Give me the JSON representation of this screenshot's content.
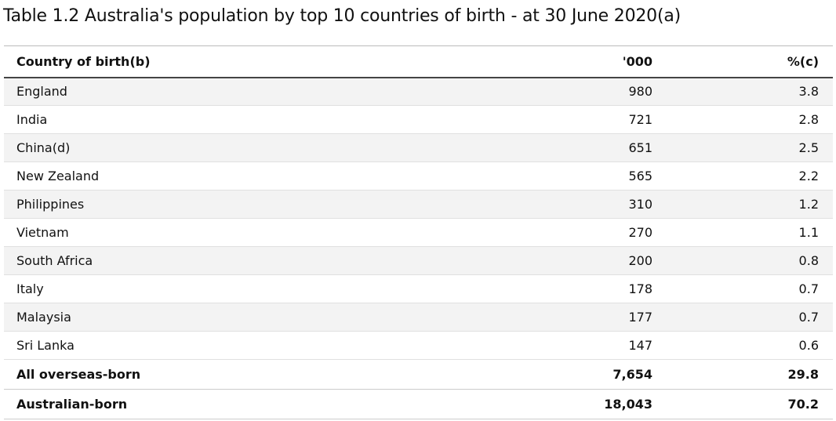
{
  "title": "Table 1.2 Australia's population by top 10 countries of birth - at 30 June 2020(a)",
  "table": {
    "header": [
      "Country of birth(b)",
      "'000",
      "%(c)"
    ],
    "rows": [
      [
        "England",
        "980",
        "3.8"
      ],
      [
        "India",
        "721",
        "2.8"
      ],
      [
        "China(d)",
        "651",
        "2.5"
      ],
      [
        "New Zealand",
        "565",
        "2.2"
      ],
      [
        "Philippines",
        "310",
        "1.2"
      ],
      [
        "Vietnam",
        "270",
        "1.1"
      ],
      [
        "South Africa",
        "200",
        "0.8"
      ],
      [
        "Italy",
        "178",
        "0.7"
      ],
      [
        "Malaysia",
        "177",
        "0.7"
      ],
      [
        "Sri Lanka",
        "147",
        "0.6"
      ]
    ],
    "summary_rows": [
      [
        "All overseas-born",
        "7,654",
        "29.8"
      ],
      [
        "Australian-born",
        "18,043",
        "70.2"
      ]
    ]
  }
}
